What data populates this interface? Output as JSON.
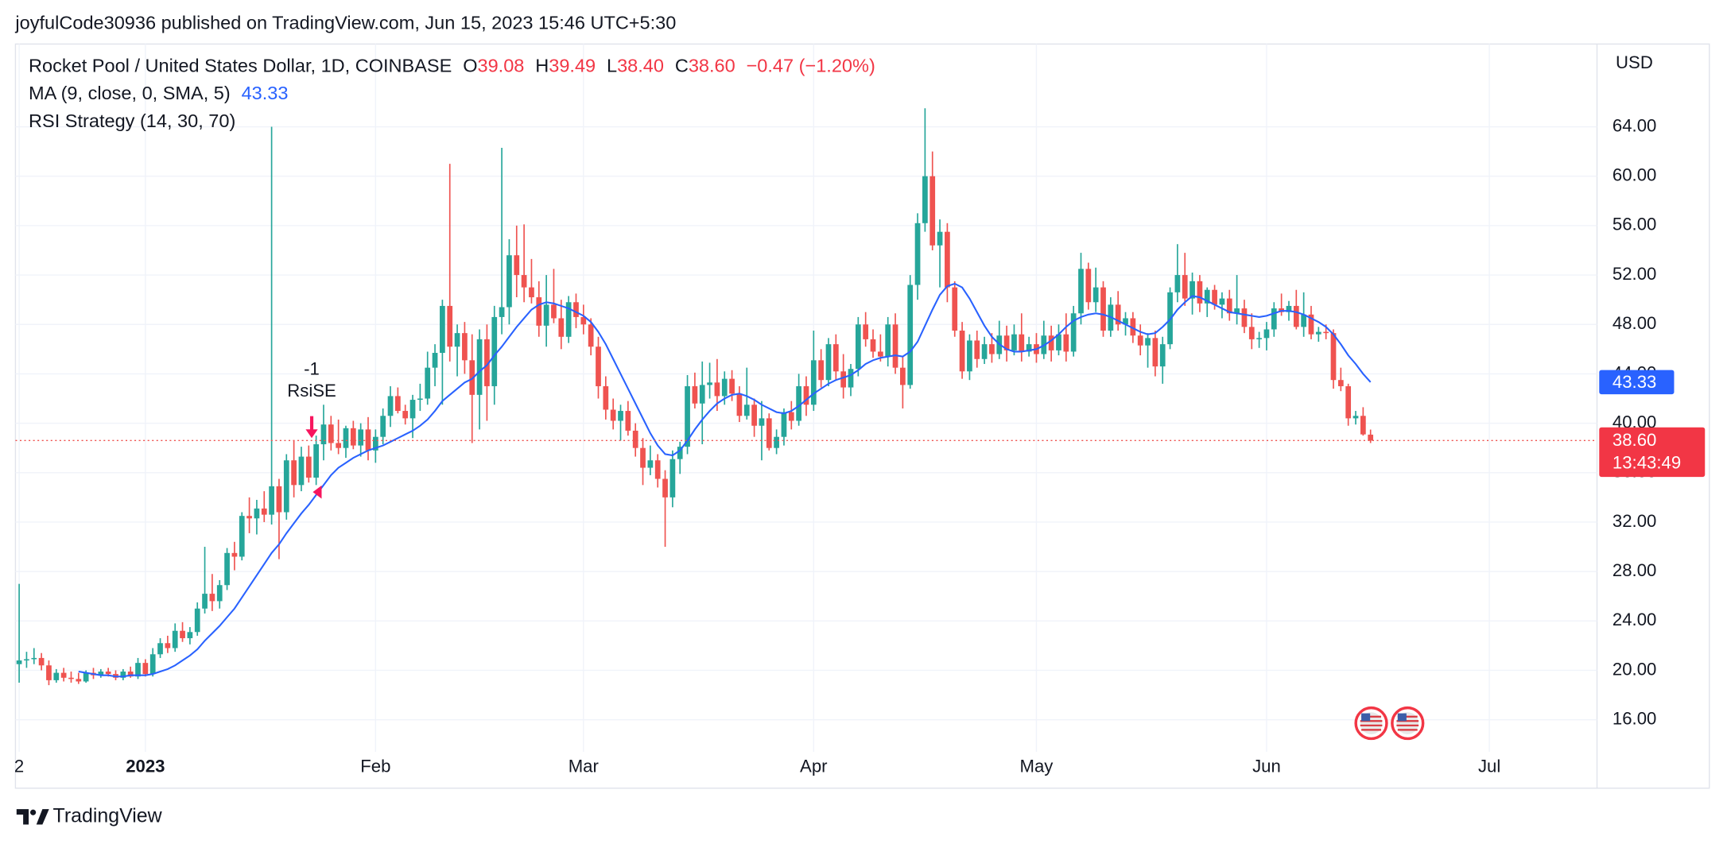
{
  "header": "joyfulCode30936 published on TradingView.com, Jun 15, 2023 15:46 UTC+5:30",
  "footer": "TradingView",
  "chart_data": {
    "type": "candlestick",
    "title": "Rocket Pool / United States Dollar, 1D, COINBASE",
    "ohlc_names": [
      "O",
      "H",
      "L",
      "C"
    ],
    "ohlc_labels": [
      "39.08",
      "39.49",
      "38.40",
      "38.60"
    ],
    "change": "−0.47 (−1.20%)",
    "currency": "USD",
    "countdown": "13:43:49",
    "strategy": "RSI Strategy (14, 30, 70)",
    "signal": {
      "qty": -1,
      "label": "RsiSE"
    },
    "up_color": "#26a69a",
    "down_color": "#ef5350",
    "grid": true,
    "xlim": [
      -0.5,
      212.5
    ],
    "xticks": [
      {
        "value": 0,
        "label": "2"
      },
      {
        "value": 17,
        "label": "2023"
      },
      {
        "value": 48,
        "label": "Feb"
      },
      {
        "value": 76,
        "label": "Mar"
      },
      {
        "value": 107,
        "label": "Apr"
      },
      {
        "value": 137,
        "label": "May"
      },
      {
        "value": 168,
        "label": "Jun"
      },
      {
        "value": 198,
        "label": "Jul"
      }
    ],
    "ylim": [
      13.4,
      70.7
    ],
    "yticks": [
      {
        "value": 16,
        "label": "16.00"
      },
      {
        "value": 20,
        "label": "20.00"
      },
      {
        "value": 24,
        "label": "24.00"
      },
      {
        "value": 28,
        "label": "28.00"
      },
      {
        "value": 32,
        "label": "32.00"
      },
      {
        "value": 36,
        "label": "36.00"
      },
      {
        "value": 40,
        "label": "40.00"
      },
      {
        "value": 44,
        "label": "44.00"
      },
      {
        "value": 48,
        "label": "48.00"
      },
      {
        "value": 52,
        "label": "52.00"
      },
      {
        "value": 56,
        "label": "56.00"
      },
      {
        "value": 60,
        "label": "60.00"
      },
      {
        "value": 64,
        "label": "64.00"
      }
    ],
    "candles": [
      [
        20.5,
        27,
        19,
        20.8
      ],
      [
        20.8,
        21.5,
        20.2,
        20.9
      ],
      [
        20.9,
        21.8,
        20.5,
        21.0
      ],
      [
        21.0,
        21.4,
        20.0,
        20.4
      ],
      [
        20.4,
        20.8,
        18.8,
        19.2
      ],
      [
        19.2,
        20.1,
        19.0,
        19.8
      ],
      [
        19.8,
        20.2,
        19.1,
        19.4
      ],
      [
        19.4,
        19.9,
        19.0,
        19.3
      ],
      [
        19.3,
        19.8,
        18.9,
        19.1
      ],
      [
        19.1,
        20.0,
        19.0,
        19.8
      ],
      [
        19.8,
        20.2,
        19.3,
        19.6
      ],
      [
        19.6,
        20.1,
        19.4,
        19.9
      ],
      [
        19.9,
        20.2,
        19.5,
        19.7
      ],
      [
        19.7,
        20.0,
        19.2,
        19.4
      ],
      [
        19.4,
        20.1,
        19.2,
        19.9
      ],
      [
        19.9,
        20.3,
        19.4,
        19.5
      ],
      [
        19.5,
        21.0,
        19.3,
        20.6
      ],
      [
        20.6,
        20.9,
        19.5,
        19.7
      ],
      [
        19.7,
        21.8,
        19.5,
        21.3
      ],
      [
        21.3,
        22.6,
        21.0,
        22.2
      ],
      [
        22.2,
        22.8,
        21.4,
        21.8
      ],
      [
        21.8,
        23.8,
        21.5,
        23.2
      ],
      [
        23.2,
        23.9,
        22.3,
        22.6
      ],
      [
        22.6,
        23.5,
        22.1,
        23.1
      ],
      [
        23.1,
        25.5,
        22.8,
        25.0
      ],
      [
        25.0,
        30.0,
        24.6,
        26.2
      ],
      [
        26.2,
        27.8,
        24.8,
        25.6
      ],
      [
        25.6,
        27.3,
        25.0,
        26.9
      ],
      [
        26.9,
        29.9,
        26.5,
        29.5
      ],
      [
        29.5,
        30.4,
        28.1,
        29.2
      ],
      [
        29.2,
        32.8,
        28.9,
        32.5
      ],
      [
        32.5,
        34.0,
        31.1,
        32.3
      ],
      [
        32.3,
        33.8,
        31.0,
        33.1
      ],
      [
        33.1,
        34.5,
        32.0,
        32.6
      ],
      [
        32.6,
        64.0,
        31.8,
        34.9
      ],
      [
        34.9,
        35.5,
        29.0,
        32.8
      ],
      [
        32.8,
        37.5,
        32.2,
        37.0
      ],
      [
        37.0,
        38.6,
        34.0,
        35.0
      ],
      [
        35.0,
        38.1,
        34.5,
        37.3
      ],
      [
        37.3,
        38.2,
        35.2,
        35.6
      ],
      [
        35.6,
        39.0,
        35.0,
        38.3
      ],
      [
        38.3,
        41.5,
        37.0,
        39.9
      ],
      [
        39.9,
        40.6,
        37.8,
        38.4
      ],
      [
        38.4,
        40.3,
        37.5,
        38.0
      ],
      [
        38.0,
        39.8,
        37.2,
        39.6
      ],
      [
        39.6,
        40.2,
        37.9,
        38.2
      ],
      [
        38.2,
        40.0,
        37.3,
        39.5
      ],
      [
        39.5,
        40.5,
        37.0,
        37.8
      ],
      [
        37.8,
        39.5,
        36.8,
        38.9
      ],
      [
        38.9,
        41.2,
        38.3,
        40.6
      ],
      [
        40.6,
        43.0,
        39.7,
        42.2
      ],
      [
        42.2,
        42.9,
        40.8,
        41.0
      ],
      [
        41.0,
        41.5,
        39.9,
        40.4
      ],
      [
        40.4,
        42.3,
        38.8,
        41.9
      ],
      [
        41.9,
        43.2,
        41.0,
        42.0
      ],
      [
        42.0,
        45.8,
        41.5,
        44.5
      ],
      [
        44.5,
        46.4,
        43.0,
        45.7
      ],
      [
        45.7,
        50.0,
        41.5,
        49.5
      ],
      [
        49.5,
        61.0,
        45.0,
        46.2
      ],
      [
        46.2,
        48.0,
        43.8,
        47.3
      ],
      [
        47.3,
        48.2,
        44.0,
        45.1
      ],
      [
        45.1,
        47.2,
        38.4,
        42.3
      ],
      [
        42.3,
        47.6,
        39.5,
        46.8
      ],
      [
        46.8,
        48.0,
        40.2,
        43.0
      ],
      [
        43.0,
        49.5,
        41.5,
        48.6
      ],
      [
        48.6,
        62.3,
        47.2,
        49.4
      ],
      [
        49.4,
        54.9,
        48.0,
        53.6
      ],
      [
        53.6,
        56.0,
        50.2,
        52.0
      ],
      [
        52.0,
        56.1,
        49.8,
        51.0
      ],
      [
        51.0,
        53.3,
        49.7,
        50.2
      ],
      [
        50.2,
        51.5,
        47.0,
        47.9
      ],
      [
        47.9,
        52.0,
        46.2,
        49.6
      ],
      [
        49.6,
        52.5,
        48.1,
        48.5
      ],
      [
        48.5,
        50.0,
        46.0,
        47.0
      ],
      [
        47.0,
        50.3,
        46.5,
        49.8
      ],
      [
        49.8,
        50.5,
        47.7,
        48.6
      ],
      [
        48.6,
        49.6,
        47.2,
        48.0
      ],
      [
        48.0,
        48.5,
        45.5,
        46.2
      ],
      [
        46.2,
        47.0,
        42.0,
        43.0
      ],
      [
        43.0,
        43.8,
        40.3,
        41.1
      ],
      [
        41.1,
        42.0,
        39.5,
        40.2
      ],
      [
        40.2,
        41.5,
        38.6,
        41.0
      ],
      [
        41.0,
        41.8,
        39.0,
        39.4
      ],
      [
        39.4,
        40.0,
        37.3,
        38.0
      ],
      [
        38.0,
        38.8,
        35.0,
        36.4
      ],
      [
        36.4,
        38.2,
        35.8,
        37.0
      ],
      [
        37.0,
        37.5,
        34.8,
        35.5
      ],
      [
        35.5,
        36.2,
        30.0,
        34.0
      ],
      [
        34.0,
        37.8,
        33.2,
        37.1
      ],
      [
        37.1,
        38.5,
        35.9,
        38.1
      ],
      [
        38.1,
        43.9,
        37.5,
        43.0
      ],
      [
        43.0,
        44.1,
        41.2,
        41.6
      ],
      [
        41.6,
        45.0,
        38.3,
        43.1
      ],
      [
        43.1,
        44.9,
        42.0,
        43.3
      ],
      [
        43.3,
        45.2,
        41.0,
        42.2
      ],
      [
        42.2,
        44.2,
        41.5,
        43.6
      ],
      [
        43.6,
        44.3,
        41.8,
        42.4
      ],
      [
        42.4,
        43.0,
        40.1,
        40.6
      ],
      [
        40.6,
        44.5,
        40.3,
        41.5
      ],
      [
        41.5,
        42.0,
        38.9,
        39.8
      ],
      [
        39.8,
        41.8,
        37.0,
        40.4
      ],
      [
        40.4,
        40.8,
        37.8,
        38.0
      ],
      [
        38.0,
        39.5,
        37.5,
        38.9
      ],
      [
        38.9,
        41.2,
        38.2,
        40.9
      ],
      [
        40.9,
        41.8,
        39.5,
        40.2
      ],
      [
        40.2,
        44.0,
        39.8,
        43.0
      ],
      [
        43.0,
        43.8,
        40.6,
        41.5
      ],
      [
        41.5,
        47.5,
        41.0,
        45.1
      ],
      [
        45.1,
        46.0,
        42.9,
        43.5
      ],
      [
        43.5,
        46.9,
        43.0,
        46.4
      ],
      [
        46.4,
        47.2,
        43.5,
        44.2
      ],
      [
        44.2,
        45.6,
        42.0,
        42.9
      ],
      [
        42.9,
        44.8,
        42.2,
        44.4
      ],
      [
        44.4,
        48.6,
        43.8,
        48.0
      ],
      [
        48.0,
        49.0,
        46.2,
        46.8
      ],
      [
        46.8,
        47.6,
        45.3,
        45.8
      ],
      [
        45.8,
        47.2,
        45.0,
        45.4
      ],
      [
        45.4,
        48.6,
        44.6,
        48.0
      ],
      [
        48.0,
        48.9,
        44.0,
        44.5
      ],
      [
        44.5,
        45.4,
        41.2,
        43.1
      ],
      [
        43.1,
        52.0,
        42.8,
        51.2
      ],
      [
        51.2,
        57.0,
        50.0,
        56.2
      ],
      [
        56.2,
        65.5,
        55.5,
        60.0
      ],
      [
        60.0,
        62.0,
        54.0,
        54.4
      ],
      [
        54.4,
        56.5,
        51.0,
        55.5
      ],
      [
        55.5,
        56.2,
        49.8,
        51.0
      ],
      [
        51.0,
        51.5,
        47.0,
        47.5
      ],
      [
        47.5,
        48.2,
        43.6,
        44.2
      ],
      [
        44.2,
        47.2,
        43.5,
        46.7
      ],
      [
        46.7,
        47.5,
        44.5,
        45.2
      ],
      [
        45.2,
        47.0,
        44.8,
        46.4
      ],
      [
        46.4,
        47.3,
        44.9,
        45.6
      ],
      [
        45.6,
        48.3,
        45.2,
        47.1
      ],
      [
        47.1,
        47.9,
        45.0,
        45.9
      ],
      [
        45.9,
        48.0,
        45.5,
        47.2
      ],
      [
        47.2,
        48.9,
        45.0,
        45.8
      ],
      [
        45.8,
        47.0,
        45.4,
        46.4
      ],
      [
        46.4,
        47.3,
        44.9,
        45.6
      ],
      [
        45.6,
        48.3,
        45.2,
        47.1
      ],
      [
        47.1,
        47.9,
        45.0,
        45.9
      ],
      [
        45.9,
        48.0,
        45.5,
        47.2
      ],
      [
        47.2,
        48.9,
        45.0,
        45.8
      ],
      [
        45.8,
        49.5,
        45.4,
        48.9
      ],
      [
        48.9,
        53.8,
        48.0,
        52.5
      ],
      [
        52.5,
        53.0,
        49.2,
        49.8
      ],
      [
        49.8,
        52.6,
        49.0,
        51.0
      ],
      [
        51.0,
        51.5,
        47.0,
        47.5
      ],
      [
        47.5,
        50.2,
        47.0,
        49.6
      ],
      [
        49.6,
        50.7,
        47.5,
        48.0
      ],
      [
        48.0,
        49.0,
        47.1,
        48.5
      ],
      [
        48.5,
        49.0,
        46.5,
        47.1
      ],
      [
        47.1,
        48.0,
        45.5,
        46.3
      ],
      [
        46.3,
        47.3,
        44.5,
        46.9
      ],
      [
        46.9,
        47.5,
        43.8,
        44.6
      ],
      [
        44.6,
        47.0,
        43.2,
        46.4
      ],
      [
        46.4,
        51.0,
        46.0,
        50.6
      ],
      [
        50.6,
        54.5,
        49.8,
        52.0
      ],
      [
        52.0,
        53.8,
        49.5,
        50.1
      ],
      [
        50.1,
        52.2,
        48.8,
        51.5
      ],
      [
        51.5,
        52.0,
        49.0,
        49.7
      ],
      [
        49.7,
        51.0,
        48.6,
        50.8
      ],
      [
        50.8,
        51.2,
        49.2,
        49.6
      ],
      [
        49.6,
        50.6,
        48.5,
        50.1
      ],
      [
        50.1,
        50.8,
        48.3,
        48.9
      ],
      [
        48.9,
        52.0,
        48.0,
        49.3
      ],
      [
        49.3,
        50.0,
        47.3,
        47.8
      ],
      [
        47.8,
        48.9,
        46.0,
        46.8
      ],
      [
        46.8,
        47.4,
        46.1,
        46.9
      ],
      [
        46.9,
        48.2,
        45.9,
        47.6
      ],
      [
        47.6,
        49.8,
        47.0,
        49.3
      ],
      [
        49.3,
        50.5,
        48.7,
        49.0
      ],
      [
        49.0,
        49.9,
        48.3,
        49.5
      ],
      [
        49.5,
        50.8,
        47.6,
        47.8
      ],
      [
        47.8,
        50.6,
        47.0,
        48.8
      ],
      [
        48.8,
        49.5,
        46.8,
        47.2
      ],
      [
        47.2,
        47.8,
        46.6,
        47.4
      ],
      [
        47.4,
        48.0,
        46.8,
        47.3
      ],
      [
        47.3,
        47.6,
        42.8,
        43.5
      ],
      [
        43.5,
        44.5,
        42.6,
        43.0
      ],
      [
        43.0,
        43.2,
        39.8,
        40.4
      ],
      [
        40.4,
        41.0,
        39.9,
        40.6
      ],
      [
        40.6,
        41.3,
        39.0,
        39.1
      ],
      [
        39.08,
        39.49,
        38.4,
        38.6
      ]
    ],
    "ma": {
      "name": "MA (9, close, 0, SMA, 5)",
      "color": "#2962ff",
      "values": [
        null,
        null,
        null,
        null,
        null,
        null,
        null,
        null,
        19.9,
        19.8,
        19.7,
        19.6,
        19.6,
        19.5,
        19.5,
        19.6,
        19.6,
        19.6,
        19.7,
        19.9,
        20.1,
        20.4,
        20.8,
        21.2,
        21.7,
        22.4,
        23.0,
        23.6,
        24.3,
        25.0,
        25.9,
        26.8,
        27.7,
        28.6,
        29.5,
        30.2,
        31.1,
        31.9,
        32.7,
        33.4,
        34.2,
        35.0,
        35.8,
        36.4,
        36.8,
        37.2,
        37.5,
        37.8,
        38.0,
        38.2,
        38.5,
        38.8,
        39.1,
        39.4,
        39.8,
        40.3,
        41.0,
        41.8,
        42.3,
        42.8,
        43.3,
        43.6,
        44.2,
        44.7,
        45.5,
        46.2,
        47.0,
        47.8,
        48.5,
        49.2,
        49.6,
        49.8,
        49.7,
        49.5,
        49.3,
        49.0,
        48.7,
        48.2,
        47.4,
        46.4,
        45.2,
        44.0,
        42.8,
        41.6,
        40.4,
        39.2,
        38.2,
        37.5,
        37.4,
        37.8,
        38.6,
        39.5,
        40.3,
        41.0,
        41.6,
        42.0,
        42.3,
        42.4,
        42.2,
        41.9,
        41.5,
        41.2,
        40.9,
        40.8,
        41.0,
        41.4,
        41.9,
        42.4,
        42.8,
        43.2,
        43.5,
        43.7,
        43.9,
        44.3,
        44.8,
        45.1,
        45.3,
        45.4,
        45.5,
        45.4,
        45.8,
        46.6,
        47.9,
        49.2,
        50.4,
        51.1,
        51.3,
        51.0,
        50.1,
        49.0,
        47.9,
        47.0,
        46.4,
        46.0,
        45.8,
        45.8,
        45.9,
        46.0,
        46.3,
        46.7,
        47.2,
        47.8,
        48.3,
        48.6,
        48.8,
        48.9,
        48.8,
        48.6,
        48.3,
        48.0,
        47.7,
        47.4,
        47.2,
        47.3,
        47.8,
        48.4,
        49.2,
        49.8,
        50.3,
        50.2,
        49.9,
        49.6,
        49.3,
        49.0,
        48.9,
        48.8,
        48.7,
        48.6,
        48.7,
        48.9,
        49.1,
        49.1,
        49.0,
        48.8,
        48.5,
        48.2,
        47.8,
        47.2,
        46.4,
        45.5,
        44.8,
        44.0,
        43.33
      ]
    }
  }
}
